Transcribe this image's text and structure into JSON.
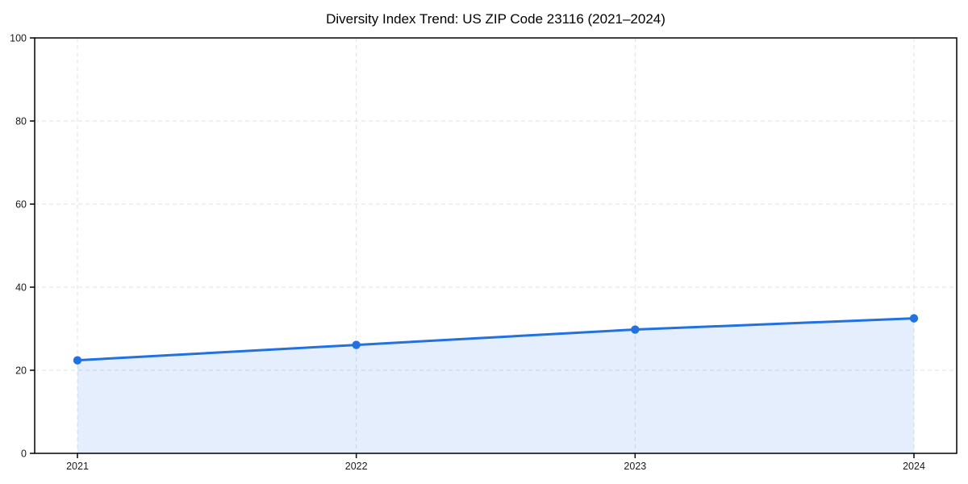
{
  "chart_data": {
    "type": "line",
    "title": "Diversity Index Trend: US ZIP Code 23116 (2021–2024)",
    "categories": [
      "2021",
      "2022",
      "2023",
      "2024"
    ],
    "series": [
      {
        "name": "Diversity Index",
        "values": [
          22.4,
          26.1,
          29.8,
          32.5
        ]
      }
    ],
    "xlabel": "",
    "ylabel": "",
    "ylim": [
      0,
      100
    ],
    "yticks": [
      0,
      20,
      40,
      60,
      80,
      100
    ],
    "grid": true,
    "grid_style": "dashed",
    "legend": "none",
    "marker": "circle",
    "area_fill": true,
    "colors": {
      "line": "#2271e3",
      "fill": "#2271e3",
      "fill_opacity": 0.12,
      "grid": "#e0e0e0",
      "axis": "#000000",
      "tick_text": "#1a1a1a",
      "title_text": "#000000",
      "background": "#ffffff"
    }
  }
}
